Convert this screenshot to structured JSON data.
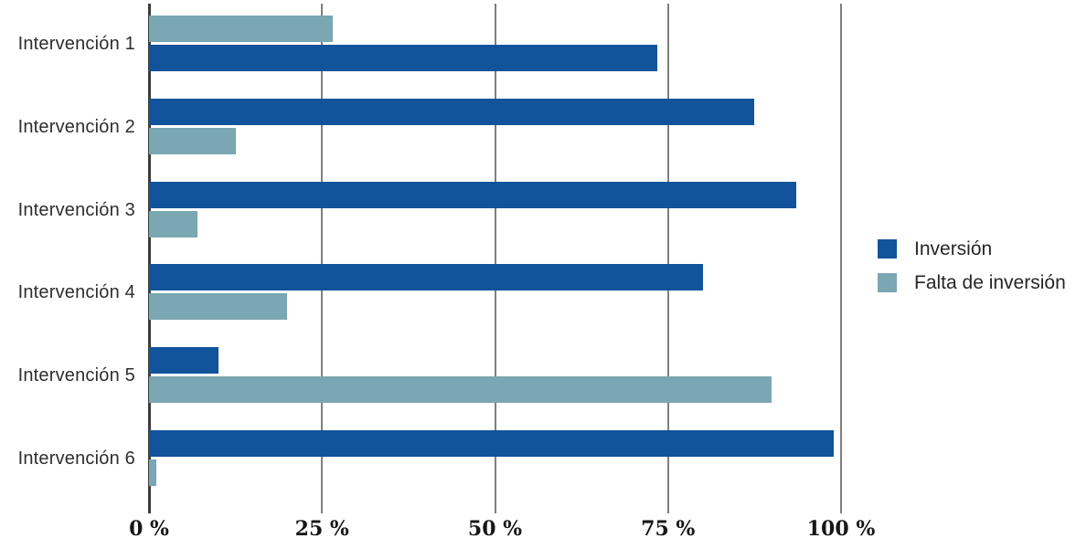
{
  "chart_data": {
    "type": "bar",
    "orientation": "horizontal",
    "title": "",
    "categories": [
      "Intervención 1",
      "Intervención 2",
      "Intervención 3",
      "Intervención 4",
      "Intervención 5",
      "Intervención 6"
    ],
    "series": [
      {
        "name": "Inversión",
        "values": [
          73.5,
          87.5,
          93.5,
          80,
          10,
          99
        ]
      },
      {
        "name": "Falta de inversión",
        "values": [
          26.5,
          12.5,
          7,
          20,
          90,
          1
        ]
      }
    ],
    "bar_order_per_row": [
      [
        1,
        0
      ],
      [
        0,
        1
      ],
      [
        0,
        1
      ],
      [
        0,
        1
      ],
      [
        0,
        1
      ],
      [
        0,
        1
      ]
    ],
    "x_ticks": [
      {
        "value": 0,
        "label": "0 %"
      },
      {
        "value": 25,
        "label": "25 %"
      },
      {
        "value": 50,
        "label": "50 %"
      },
      {
        "value": 75,
        "label": "75 %"
      },
      {
        "value": 100,
        "label": "100 %"
      }
    ],
    "xlim": [
      0,
      100
    ],
    "grid": "vertical",
    "legend": {
      "position": "right",
      "entries": [
        "Inversión",
        "Falta de inversión"
      ]
    }
  },
  "colors": {
    "series": [
      "#11549b",
      "#7aa7b1"
    ],
    "gridline": "#7f7f7f",
    "axis_line": "#3c3c3c",
    "category_text": "#2e2e2e",
    "tick_text": "#171717",
    "background": "#ffffff"
  }
}
